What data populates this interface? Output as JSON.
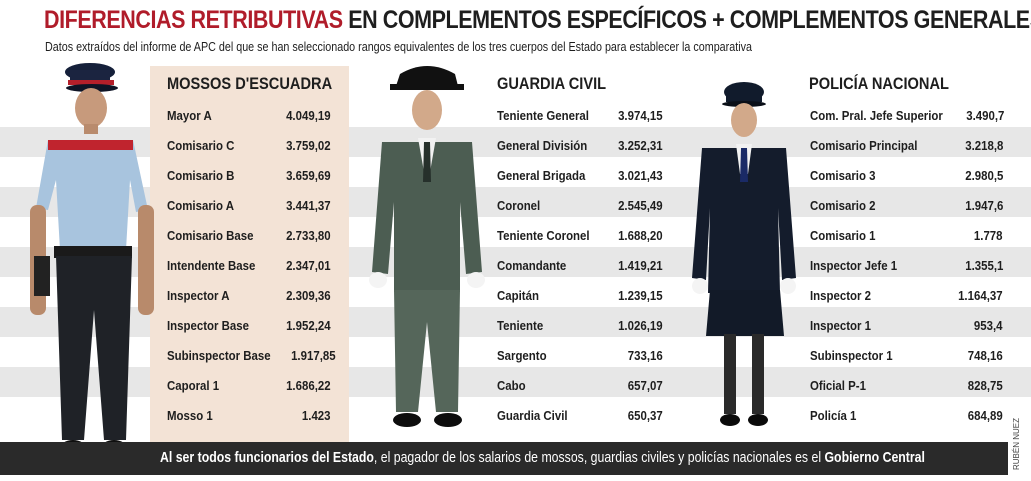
{
  "title": {
    "part1": "DIFERENCIAS RETRIBUTIVAS",
    "part2": " EN COMPLEMENTOS ESPECÍFICOS + COMPLEMENTOS GENERALES"
  },
  "subtitle": "Datos extraídos del informe de APC del que se han seleccionado rangos equivalentes de los tres cuerpos del Estado para establecer la comparativa",
  "mossos": {
    "header": "MOSSOS D'ESCUADRA",
    "rows": [
      {
        "name": "Mayor A",
        "value": "4.049,19"
      },
      {
        "name": "Comisario C",
        "value": "3.759,02"
      },
      {
        "name": "Comisario B",
        "value": "3.659,69"
      },
      {
        "name": "Comisario A",
        "value": "3.441,37"
      },
      {
        "name": "Comisario Base",
        "value": "2.733,80"
      },
      {
        "name": "Intendente Base",
        "value": "2.347,01"
      },
      {
        "name": "Inspector A",
        "value": "2.309,36"
      },
      {
        "name": "Inspector Base",
        "value": "1.952,24"
      },
      {
        "name": "Subinspector Base",
        "value": "1.917,85"
      },
      {
        "name": "Caporal 1",
        "value": "1.686,22"
      },
      {
        "name": "Mosso 1",
        "value": "1.423"
      }
    ]
  },
  "guardia": {
    "header": "GUARDIA CIVIL",
    "rows": [
      {
        "name": "Teniente General",
        "value": "3.974,15"
      },
      {
        "name": "General División",
        "value": "3.252,31"
      },
      {
        "name": "General Brigada",
        "value": "3.021,43"
      },
      {
        "name": "Coronel",
        "value": "2.545,49"
      },
      {
        "name": "Teniente Coronel",
        "value": "1.688,20"
      },
      {
        "name": "Comandante",
        "value": "1.419,21"
      },
      {
        "name": "Capitán",
        "value": "1.239,15"
      },
      {
        "name": "Teniente",
        "value": "1.026,19"
      },
      {
        "name": "Sargento",
        "value": "733,16"
      },
      {
        "name": "Cabo",
        "value": "657,07"
      },
      {
        "name": "Guardia Civil",
        "value": "650,37"
      }
    ]
  },
  "policia": {
    "header": "POLICÍA NACIONAL",
    "rows": [
      {
        "name": "Com. Pral. Jefe Superior",
        "value": "3.490,7"
      },
      {
        "name": "Comisario Principal",
        "value": "3.218,8"
      },
      {
        "name": "Comisario 3",
        "value": "2.980,5"
      },
      {
        "name": "Comisario 2",
        "value": "1.947,6"
      },
      {
        "name": "Comisario 1",
        "value": "1.778"
      },
      {
        "name": "Inspector Jefe 1",
        "value": "1.355,1"
      },
      {
        "name": "Inspector  2",
        "value": "1.164,37"
      },
      {
        "name": "Inspector 1",
        "value": "953,4"
      },
      {
        "name": "Subinspector 1",
        "value": "748,16"
      },
      {
        "name": "Oficial P-1",
        "value": "828,75"
      },
      {
        "name": "Policía 1",
        "value": "684,89"
      }
    ]
  },
  "footer": {
    "bold1": "Al ser todos funcionarios del Estado",
    "plain1": ", el pagador de los salarios de mossos, guardias civiles y policías nacionales es el ",
    "bold2": "Gobierno Central"
  },
  "credit": "RUBÉN NUEZ",
  "colors": {
    "title_red": "#b01c2a",
    "stripe": "#e7e7e7",
    "mossos_panel": "#f3e3d6",
    "footer_bg": "#2a2a2a"
  }
}
